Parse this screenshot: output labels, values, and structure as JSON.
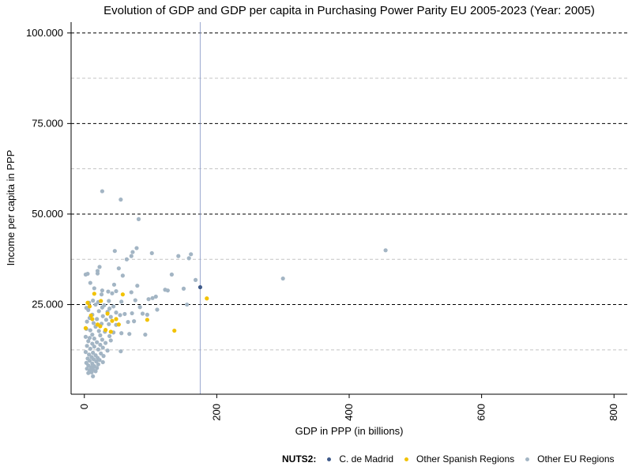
{
  "chart_data": {
    "type": "scatter",
    "title": "Evolution of GDP and GDP per capita in Purchasing Power Parity EU 2005-2023 (Year: 2005)",
    "xlabel": "GDP in PPP (in billions)",
    "ylabel": "Income per capita in PPP",
    "xlim": [
      -20,
      820
    ],
    "ylim": [
      250,
      103000
    ],
    "x_ticks": [
      0,
      200,
      400,
      600,
      800
    ],
    "y_ticks": [
      25000,
      50000,
      75000,
      100000
    ],
    "y_tick_labels": [
      "25.000",
      "50.000",
      "75.000",
      "100.000"
    ],
    "minor_y_gridlines": [
      12500,
      37500,
      62500,
      87500
    ],
    "vline_x": 175,
    "legend": {
      "title": "NUTS2:",
      "position": "bottom"
    },
    "series": [
      {
        "name": "C. de Madrid",
        "color": "#3f5a8a",
        "points": [
          [
            175,
            29800
          ]
        ]
      },
      {
        "name": "Other Spanish Regions",
        "color": "#f2c200",
        "points": [
          [
            185,
            26700
          ],
          [
            58,
            27800
          ],
          [
            15,
            28000
          ],
          [
            25,
            26000
          ],
          [
            5,
            25500
          ],
          [
            8,
            24500
          ],
          [
            35,
            22500
          ],
          [
            10,
            22000
          ],
          [
            12,
            21000
          ],
          [
            42,
            20500
          ],
          [
            20,
            19500
          ],
          [
            24,
            19000
          ],
          [
            2,
            18500
          ],
          [
            32,
            18000
          ],
          [
            48,
            21000
          ],
          [
            52,
            19500
          ],
          [
            95,
            20800
          ],
          [
            136,
            17800
          ],
          [
            40,
            17500
          ]
        ]
      },
      {
        "name": "Other EU Regions",
        "color": "#a3b5c4",
        "points": [
          [
            27,
            56300
          ],
          [
            55,
            54000
          ],
          [
            82,
            48600
          ],
          [
            455,
            40000
          ],
          [
            79,
            40600
          ],
          [
            46,
            39800
          ],
          [
            73,
            39500
          ],
          [
            102,
            39200
          ],
          [
            71,
            38400
          ],
          [
            142,
            38400
          ],
          [
            64,
            37500
          ],
          [
            161,
            38900
          ],
          [
            158,
            37800
          ],
          [
            300,
            32200
          ],
          [
            23,
            35400
          ],
          [
            52,
            35000
          ],
          [
            20,
            34300
          ],
          [
            20,
            33600
          ],
          [
            2,
            33300
          ],
          [
            5,
            33500
          ],
          [
            132,
            33300
          ],
          [
            58,
            33000
          ],
          [
            168,
            31800
          ],
          [
            9,
            31000
          ],
          [
            45,
            30500
          ],
          [
            80,
            30200
          ],
          [
            150,
            29400
          ],
          [
            122,
            29100
          ],
          [
            126,
            28900
          ],
          [
            15,
            29500
          ],
          [
            27,
            28900
          ],
          [
            48,
            28700
          ],
          [
            36,
            28600
          ],
          [
            71,
            28400
          ],
          [
            42,
            28100
          ],
          [
            26,
            27800
          ],
          [
            108,
            27200
          ],
          [
            103,
            26800
          ],
          [
            155,
            25000
          ],
          [
            97,
            26500
          ],
          [
            77,
            26200
          ],
          [
            13,
            26100
          ],
          [
            37,
            26000
          ],
          [
            56,
            25800
          ],
          [
            21,
            25700
          ],
          [
            7,
            25500
          ],
          [
            17,
            25000
          ],
          [
            30,
            24800
          ],
          [
            44,
            24500
          ],
          [
            27,
            24200
          ],
          [
            84,
            24300
          ],
          [
            110,
            23600
          ],
          [
            3,
            24100
          ],
          [
            38,
            23900
          ],
          [
            6,
            23500
          ],
          [
            22,
            23200
          ],
          [
            35,
            23000
          ],
          [
            48,
            22800
          ],
          [
            72,
            22600
          ],
          [
            88,
            22500
          ],
          [
            61,
            22400
          ],
          [
            95,
            22200
          ],
          [
            54,
            22100
          ],
          [
            12,
            22200
          ],
          [
            28,
            21800
          ],
          [
            40,
            21600
          ],
          [
            8,
            21300
          ],
          [
            19,
            21000
          ],
          [
            33,
            20800
          ],
          [
            66,
            20200
          ],
          [
            75,
            20400
          ],
          [
            4,
            20300
          ],
          [
            14,
            19900
          ],
          [
            26,
            19700
          ],
          [
            37,
            19600
          ],
          [
            48,
            19400
          ],
          [
            17,
            18900
          ],
          [
            3,
            18300
          ],
          [
            9,
            17900
          ],
          [
            22,
            17700
          ],
          [
            31,
            17500
          ],
          [
            44,
            17300
          ],
          [
            56,
            17100
          ],
          [
            68,
            16900
          ],
          [
            92,
            16700
          ],
          [
            12,
            16700
          ],
          [
            24,
            16500
          ],
          [
            38,
            16300
          ],
          [
            2,
            16100
          ],
          [
            8,
            15800
          ],
          [
            15,
            15600
          ],
          [
            27,
            15300
          ],
          [
            40,
            15100
          ],
          [
            6,
            14900
          ],
          [
            19,
            14600
          ],
          [
            32,
            14400
          ],
          [
            12,
            14200
          ],
          [
            24,
            13900
          ],
          [
            4,
            13600
          ],
          [
            15,
            13400
          ],
          [
            28,
            13100
          ],
          [
            9,
            12800
          ],
          [
            21,
            12600
          ],
          [
            35,
            12300
          ],
          [
            55,
            12100
          ],
          [
            2,
            11900
          ],
          [
            13,
            11700
          ],
          [
            25,
            11500
          ],
          [
            7,
            11200
          ],
          [
            17,
            11000
          ],
          [
            29,
            10800
          ],
          [
            11,
            10500
          ],
          [
            20,
            10300
          ],
          [
            5,
            10100
          ],
          [
            14,
            9900
          ],
          [
            23,
            9700
          ],
          [
            8,
            9500
          ],
          [
            18,
            9300
          ],
          [
            28,
            9100
          ],
          [
            3,
            8900
          ],
          [
            12,
            8700
          ],
          [
            21,
            8500
          ],
          [
            6,
            8200
          ],
          [
            15,
            8000
          ],
          [
            10,
            7700
          ],
          [
            19,
            7500
          ],
          [
            4,
            7300
          ],
          [
            13,
            7100
          ],
          [
            8,
            6800
          ],
          [
            17,
            6600
          ],
          [
            11,
            6300
          ],
          [
            6,
            6100
          ],
          [
            13,
            5200
          ]
        ]
      }
    ]
  }
}
